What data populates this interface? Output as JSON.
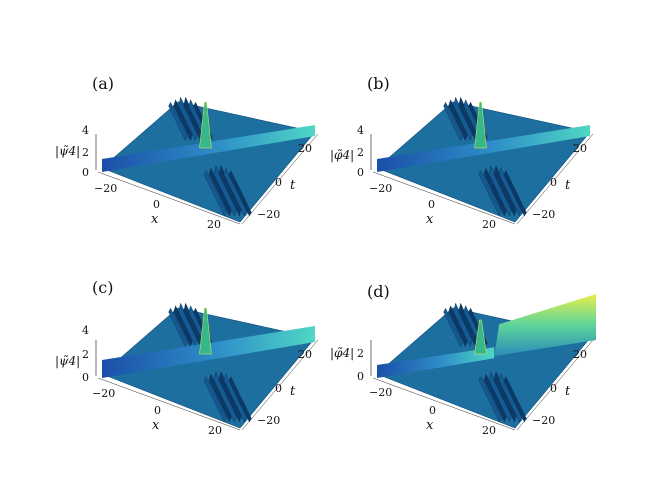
{
  "panels": [
    {
      "label": "(a)",
      "zlabel": "|ψ̃4|",
      "zticks": [
        "4",
        "2",
        "0"
      ],
      "xticks": [
        "−20",
        "0",
        "20"
      ],
      "xlabel": "x",
      "tticks": [
        "20",
        "0",
        "−20"
      ],
      "tlabel": "t",
      "variant": "a"
    },
    {
      "label": "(b)",
      "zlabel": "|φ̃4|",
      "zticks": [
        "4",
        "2",
        "0"
      ],
      "xticks": [
        "−20",
        "0",
        "20"
      ],
      "xlabel": "x",
      "tticks": [
        "20",
        "0",
        "−20"
      ],
      "tlabel": "t",
      "variant": "b"
    },
    {
      "label": "(c)",
      "zlabel": "|ψ̃4|",
      "zticks": [
        "4",
        "2",
        "0"
      ],
      "xticks": [
        "−20",
        "0",
        "20"
      ],
      "xlabel": "x",
      "tticks": [
        "20",
        "0",
        "−20"
      ],
      "tlabel": "t",
      "variant": "c"
    },
    {
      "label": "(d)",
      "zlabel": "|φ̃4|",
      "zticks": [
        "2",
        "0"
      ],
      "xticks": [
        "−20",
        "0",
        "20"
      ],
      "xlabel": "x",
      "tticks": [
        "20",
        "0",
        "−20"
      ],
      "tlabel": "t",
      "variant": "d"
    }
  ],
  "colors": {
    "surface": "#1d6fa0",
    "surface_dark": "#0e4f7c",
    "wave_low": "#1b4fa8",
    "wave_high": "#4fd7c4",
    "peak": "#e9ef4a"
  }
}
